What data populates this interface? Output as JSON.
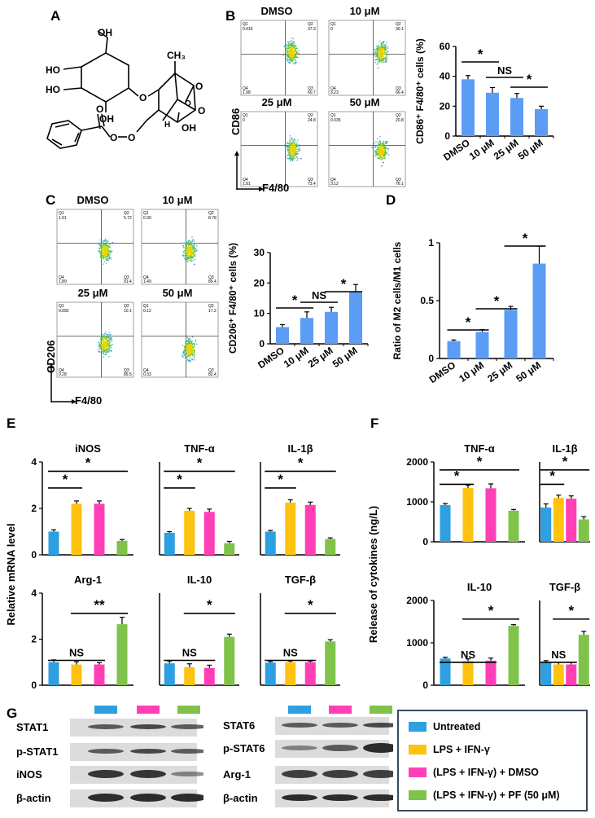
{
  "panels": {
    "A": "A",
    "B": "B",
    "C": "C",
    "D": "D",
    "E": "E",
    "F": "F",
    "G": "G"
  },
  "colors": {
    "untreated": "#2e9fe0",
    "lps": "#ffc20e",
    "dmso": "#ff3fb5",
    "pf": "#7fc34a",
    "bar_single": "#5b9cf5"
  },
  "chemical": {
    "atoms": {
      "oh1": "OH",
      "ho1": "HO",
      "ho2": "HO",
      "oh2": "OH",
      "o_link": "O",
      "ch3": "CH₃",
      "o_ring": "O",
      "o_ester1": "O",
      "o_ester2": "O",
      "o_ring2": "O",
      "oh3": "OH",
      "h": "H",
      "o_carbonyl": "O",
      "o_bridge": "O"
    }
  },
  "flow_b": {
    "plots": [
      {
        "title": "DMSO",
        "q1": "0.016",
        "q2": "37.3",
        "q3": "60.7",
        "q4": "1.98"
      },
      {
        "title": "10 μM",
        "q1": "0",
        "q2": "30.1",
        "q3": "66.4",
        "q4": "3.23"
      },
      {
        "title": "25 μM",
        "q1": "0",
        "q2": "24.8",
        "q3": "73.4",
        "q4": "1.81"
      },
      {
        "title": "50 μM",
        "q1": "0.035",
        "q2": "20.8",
        "q3": "76.1",
        "q4": "3.12"
      }
    ],
    "ylabel": "CD86",
    "xlabel": "F4/80"
  },
  "flow_c": {
    "plots": [
      {
        "title": "DMSO",
        "q1": "1.01",
        "q2": "5.72",
        "q3": "91.4",
        "q4": "1.89"
      },
      {
        "title": "10 μM",
        "q1": "0.30",
        "q2": "8.78",
        "q3": "89.4",
        "q4": "1.49"
      },
      {
        "title": "25 μM",
        "q1": "0.092",
        "q2": "10.1",
        "q3": "89.5",
        "q4": "0.28"
      },
      {
        "title": "50 μM",
        "q1": "0.12",
        "q2": "17.2",
        "q3": "82.4",
        "q4": "0.33"
      }
    ],
    "ylabel": "CD206",
    "xlabel": "F4/80"
  },
  "quadrant_labels": {
    "q1": "Q1",
    "q2": "Q2",
    "q3": "Q3",
    "q4": "Q4"
  },
  "chart_data": [
    {
      "id": "B",
      "type": "bar",
      "categories": [
        "DMSO",
        "10 μM",
        "25 μM",
        "50 μM"
      ],
      "values": [
        38,
        29,
        25.5,
        18
      ],
      "errors": [
        2.5,
        3.5,
        3,
        2
      ],
      "ylabel": "CD86⁺ F4/80⁺ cells (%)",
      "ylim": [
        0,
        60
      ],
      "yticks": [
        "0",
        "20",
        "40",
        "60"
      ],
      "annotations": [
        {
          "from": 0,
          "to": 1,
          "text": "*"
        },
        {
          "from": 1,
          "to": 2,
          "text": "NS"
        },
        {
          "from": 2,
          "to": 3,
          "text": "*"
        }
      ]
    },
    {
      "id": "C",
      "type": "bar",
      "categories": [
        "DMSO",
        "10 μM",
        "25 μM",
        "50 μM"
      ],
      "values": [
        5.5,
        8.5,
        10.5,
        17
      ],
      "errors": [
        0.8,
        2,
        1.5,
        2.5
      ],
      "ylabel": "CD206⁺ F4/80⁺ cells (%)",
      "ylim": [
        0,
        30
      ],
      "yticks": [
        "0",
        "10",
        "20",
        "30"
      ],
      "annotations": [
        {
          "from": 0,
          "to": 1,
          "text": "*"
        },
        {
          "from": 1,
          "to": 2,
          "text": "NS"
        },
        {
          "from": 2,
          "to": 3,
          "text": "*"
        }
      ]
    },
    {
      "id": "D",
      "type": "bar",
      "categories": [
        "DMSO",
        "10 μM",
        "25 μM",
        "50 μM"
      ],
      "values": [
        0.15,
        0.23,
        0.42,
        0.82
      ],
      "errors": [
        0.01,
        0.02,
        0.03,
        0.15
      ],
      "ylabel": "Ratio of M2 cells/M1 cells",
      "ylim": [
        0,
        1
      ],
      "yticks": [
        "0",
        "0.5",
        "1"
      ],
      "annotations": [
        {
          "from": 0,
          "to": 1,
          "text": "*"
        },
        {
          "from": 1,
          "to": 2,
          "text": "*"
        },
        {
          "from": 2,
          "to": 3,
          "text": "*"
        }
      ]
    },
    {
      "id": "E",
      "type": "bar",
      "ylabel": "Relative mRNA  level",
      "ylim": [
        0,
        4
      ],
      "yticks": [
        "0",
        "2",
        "4"
      ],
      "groups": [
        "Untreated",
        "LPS + IFN-γ",
        "(LPS + IFN-γ) + DMSO",
        "(LPS + IFN-γ) + PF (50 μM)"
      ],
      "subplots": [
        {
          "title": "iNOS",
          "values": [
            1.0,
            2.2,
            2.2,
            0.6
          ],
          "errors": [
            0.08,
            0.12,
            0.12,
            0.06
          ],
          "annotations": [
            {
              "from": 0,
              "to": 1,
              "text": "*"
            },
            {
              "from": 0,
              "to": 3,
              "text": "*"
            }
          ]
        },
        {
          "title": "TNF-α",
          "values": [
            0.95,
            1.9,
            1.85,
            0.5
          ],
          "errors": [
            0.05,
            0.1,
            0.12,
            0.08
          ],
          "annotations": [
            {
              "from": 0,
              "to": 1,
              "text": "*"
            },
            {
              "from": 0,
              "to": 3,
              "text": "*"
            }
          ]
        },
        {
          "title": "IL-1β",
          "values": [
            1.0,
            2.25,
            2.15,
            0.68
          ],
          "errors": [
            0.05,
            0.12,
            0.12,
            0.05
          ],
          "annotations": [
            {
              "from": 0,
              "to": 1,
              "text": "*"
            },
            {
              "from": 0,
              "to": 3,
              "text": "*"
            }
          ]
        },
        {
          "title": "Arg-1",
          "values": [
            1.0,
            0.9,
            0.9,
            2.65
          ],
          "errors": [
            0.1,
            0.12,
            0.08,
            0.3
          ],
          "annotations": [
            {
              "from": 0,
              "to": 2,
              "text": "NS"
            },
            {
              "from": 1,
              "to": 3,
              "text": "**"
            }
          ]
        },
        {
          "title": "IL-10",
          "values": [
            0.95,
            0.78,
            0.75,
            2.1
          ],
          "errors": [
            0.1,
            0.15,
            0.12,
            0.12
          ],
          "annotations": [
            {
              "from": 0,
              "to": 2,
              "text": "NS"
            },
            {
              "from": 1,
              "to": 3,
              "text": "*"
            }
          ]
        },
        {
          "title": "TGF-β",
          "values": [
            0.98,
            1.0,
            1.0,
            1.9
          ],
          "errors": [
            0.05,
            0.05,
            0.05,
            0.08
          ],
          "annotations": [
            {
              "from": 0,
              "to": 2,
              "text": "NS"
            },
            {
              "from": 1,
              "to": 3,
              "text": "*"
            }
          ]
        }
      ]
    },
    {
      "id": "F",
      "type": "bar",
      "ylabel": "Release of cytokines (ng/L)",
      "ylim": [
        0,
        2000
      ],
      "yticks": [
        "0",
        "1000",
        "2000"
      ],
      "groups": [
        "Untreated",
        "LPS + IFN-γ",
        "(LPS + IFN-γ) + DMSO",
        "(LPS + IFN-γ) + PF (50 μM)"
      ],
      "subplots": [
        {
          "title": "TNF-α",
          "values": [
            920,
            1350,
            1340,
            780
          ],
          "errors": [
            40,
            70,
            110,
            30
          ],
          "annotations": [
            {
              "from": 0,
              "to": 1,
              "text": "*"
            },
            {
              "from": 0,
              "to": 3,
              "text": "*"
            }
          ]
        },
        {
          "title": "IL-1β",
          "values": [
            860,
            1100,
            1080,
            560
          ],
          "errors": [
            90,
            70,
            70,
            70
          ],
          "annotations": [
            {
              "from": 0,
              "to": 1,
              "text": "*"
            },
            {
              "from": 0,
              "to": 3,
              "text": "*"
            }
          ]
        },
        {
          "title": "IL-10",
          "values": [
            630,
            570,
            580,
            1400
          ],
          "errors": [
            30,
            50,
            60,
            30
          ],
          "annotations": [
            {
              "from": 0,
              "to": 2,
              "text": "NS"
            },
            {
              "from": 1,
              "to": 3,
              "text": "*"
            }
          ]
        },
        {
          "title": "TGF-β",
          "values": [
            530,
            490,
            490,
            1190
          ],
          "errors": [
            50,
            50,
            50,
            80
          ],
          "annotations": [
            {
              "from": 0,
              "to": 2,
              "text": "NS"
            },
            {
              "from": 1,
              "to": 3,
              "text": "*"
            }
          ]
        }
      ]
    }
  ],
  "western": {
    "left": [
      "STAT1",
      "p-STAT1",
      "iNOS",
      "β-actin"
    ],
    "right": [
      "STAT6",
      "p-STAT6",
      "Arg-1",
      "β-actin"
    ]
  },
  "legend": {
    "items": [
      "Untreated",
      "LPS + IFN-γ",
      "(LPS + IFN-γ) + DMSO",
      "(LPS + IFN-γ) + PF (50 μM)"
    ]
  }
}
